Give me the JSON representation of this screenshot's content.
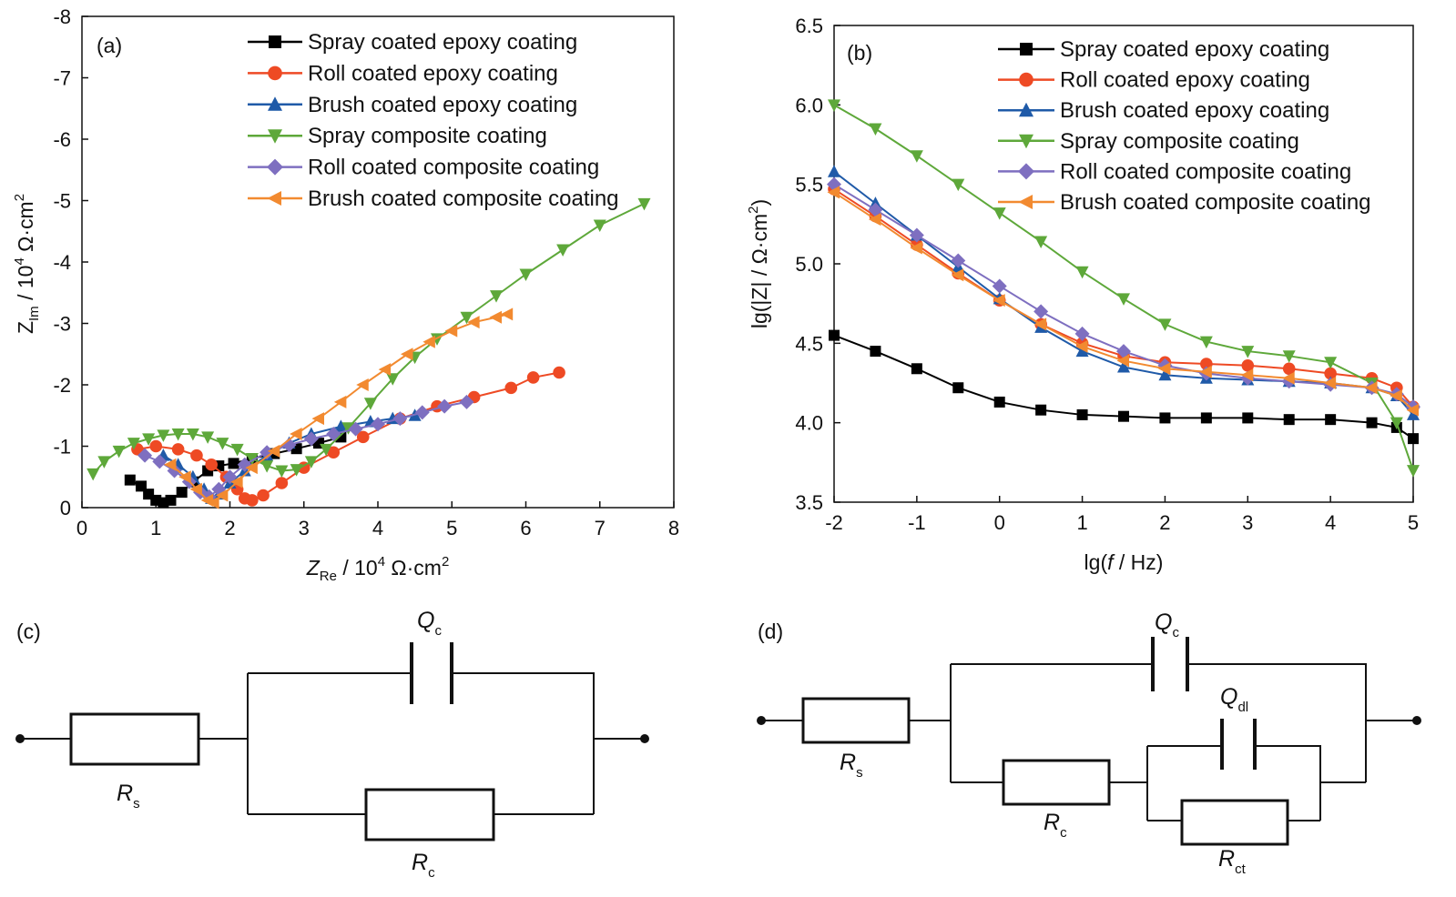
{
  "colors": {
    "spray_epoxy": "#000000",
    "roll_epoxy": "#ee4a24",
    "brush_epoxy": "#1f5aa8",
    "spray_composite": "#5ea83a",
    "roll_composite": "#7e6fc0",
    "brush_composite": "#f28a30"
  },
  "chart_data": [
    {
      "panel": "(a)",
      "type": "scatter",
      "xlabel_main": "Z",
      "xlabel_sub": "Re",
      "xlabel_unit": " / 10",
      "xlabel_exp": "4",
      "xlabel_tail": " Ω·cm",
      "xlabel_tail_exp": "2",
      "ylabel_main": "Z",
      "ylabel_sub": "Im",
      "ylabel_unit": " / 10",
      "ylabel_exp": "4",
      "ylabel_tail": " Ω·cm",
      "ylabel_tail_exp": "2",
      "xlim": [
        0,
        8
      ],
      "ylim": [
        0,
        -8
      ],
      "xticks": [
        "0",
        "1",
        "2",
        "3",
        "4",
        "5",
        "6",
        "7",
        "8"
      ],
      "yticks": [
        "0",
        "-1",
        "-2",
        "-3",
        "-4",
        "-5",
        "-6",
        "-7",
        "-8"
      ],
      "legend_position": "top-right",
      "series": [
        {
          "name": "Spray coated epoxy coating",
          "marker": "square",
          "color_key": "spray_epoxy",
          "x": [
            0.65,
            0.8,
            0.9,
            1.0,
            1.1,
            1.2,
            1.35,
            1.5,
            1.7,
            1.85,
            2.05,
            2.3,
            2.6,
            2.9,
            3.2,
            3.5
          ],
          "y": [
            -0.45,
            -0.35,
            -0.22,
            -0.12,
            -0.08,
            -0.12,
            -0.25,
            -0.42,
            -0.6,
            -0.68,
            -0.72,
            -0.8,
            -0.88,
            -0.96,
            -1.05,
            -1.15
          ]
        },
        {
          "name": "Roll coated epoxy coating",
          "marker": "circle",
          "color_key": "roll_epoxy",
          "x": [
            0.75,
            1.0,
            1.3,
            1.55,
            1.75,
            1.95,
            2.1,
            2.2,
            2.3,
            2.45,
            2.7,
            3.0,
            3.4,
            3.8,
            4.3,
            4.8,
            5.3,
            5.8,
            6.1,
            6.45
          ],
          "y": [
            -0.95,
            -1.0,
            -0.95,
            -0.85,
            -0.7,
            -0.5,
            -0.3,
            -0.15,
            -0.12,
            -0.2,
            -0.4,
            -0.65,
            -0.9,
            -1.15,
            -1.45,
            -1.65,
            -1.8,
            -1.95,
            -2.12,
            -2.2
          ]
        },
        {
          "name": "Brush coated epoxy coating",
          "marker": "triangle-up",
          "color_key": "brush_epoxy",
          "x": [
            1.1,
            1.3,
            1.5,
            1.65,
            1.75,
            1.85,
            2.0,
            2.2,
            2.5,
            2.8,
            3.1,
            3.5,
            3.9,
            4.2,
            4.5
          ],
          "y": [
            -0.85,
            -0.7,
            -0.5,
            -0.3,
            -0.15,
            -0.22,
            -0.4,
            -0.6,
            -0.85,
            -1.05,
            -1.2,
            -1.32,
            -1.4,
            -1.45,
            -1.5
          ]
        },
        {
          "name": "Spray composite coating",
          "marker": "triangle-down",
          "color_key": "spray_composite",
          "x": [
            0.15,
            0.3,
            0.5,
            0.7,
            0.9,
            1.1,
            1.3,
            1.5,
            1.7,
            1.9,
            2.1,
            2.3,
            2.5,
            2.7,
            2.9,
            3.1,
            3.3,
            3.6,
            3.9,
            4.2,
            4.5,
            4.8,
            5.2,
            5.6,
            6.0,
            6.5,
            7.0,
            7.6
          ],
          "y": [
            -0.55,
            -0.75,
            -0.92,
            -1.05,
            -1.12,
            -1.18,
            -1.2,
            -1.2,
            -1.15,
            -1.05,
            -0.95,
            -0.8,
            -0.68,
            -0.6,
            -0.62,
            -0.75,
            -0.95,
            -1.3,
            -1.7,
            -2.1,
            -2.45,
            -2.75,
            -3.1,
            -3.45,
            -3.8,
            -4.2,
            -4.6,
            -4.95
          ]
        },
        {
          "name": "Roll coated composite coating",
          "marker": "diamond",
          "color_key": "roll_composite",
          "x": [
            0.85,
            1.05,
            1.25,
            1.45,
            1.6,
            1.72,
            1.85,
            2.0,
            2.2,
            2.5,
            2.8,
            3.1,
            3.4,
            3.7,
            4.0,
            4.3,
            4.6,
            4.9,
            5.2
          ],
          "y": [
            -0.85,
            -0.75,
            -0.6,
            -0.42,
            -0.25,
            -0.18,
            -0.3,
            -0.5,
            -0.7,
            -0.9,
            -1.02,
            -1.12,
            -1.2,
            -1.28,
            -1.36,
            -1.45,
            -1.55,
            -1.65,
            -1.72
          ]
        },
        {
          "name": "Brush coated composite coating",
          "marker": "triangle-left",
          "color_key": "brush_composite",
          "x": [
            1.2,
            1.4,
            1.55,
            1.7,
            1.78,
            1.9,
            2.1,
            2.3,
            2.6,
            2.9,
            3.2,
            3.5,
            3.8,
            4.1,
            4.4,
            4.7,
            5.0,
            5.3,
            5.6,
            5.75
          ],
          "y": [
            -0.7,
            -0.5,
            -0.3,
            -0.12,
            -0.08,
            -0.2,
            -0.42,
            -0.65,
            -0.92,
            -1.2,
            -1.45,
            -1.72,
            -2.0,
            -2.25,
            -2.5,
            -2.7,
            -2.88,
            -3.02,
            -3.1,
            -3.15
          ]
        }
      ]
    },
    {
      "panel": "(b)",
      "type": "scatter",
      "xlabel_pre": "lg(",
      "xlabel_var": "f",
      "xlabel_post": " / Hz)",
      "ylabel": "lg(|Z| / Ω·cm",
      "ylabel_exp": "2",
      "ylabel_post": ")",
      "xlim": [
        -2,
        5
      ],
      "ylim": [
        3.5,
        6.5
      ],
      "xticks": [
        "-2",
        "-1",
        "0",
        "1",
        "2",
        "3",
        "4",
        "5"
      ],
      "yticks": [
        "3.5",
        "4.0",
        "4.5",
        "5.0",
        "5.5",
        "6.0",
        "6.5"
      ],
      "legend_position": "top-right",
      "series": [
        {
          "name": "Spray coated epoxy coating",
          "marker": "square",
          "color_key": "spray_epoxy",
          "x": [
            -2,
            -1.5,
            -1,
            -0.5,
            0,
            0.5,
            1,
            1.5,
            2,
            2.5,
            3,
            3.5,
            4,
            4.5,
            4.8,
            5
          ],
          "y": [
            4.55,
            4.45,
            4.34,
            4.22,
            4.13,
            4.08,
            4.05,
            4.04,
            4.03,
            4.03,
            4.03,
            4.02,
            4.02,
            4.0,
            3.97,
            3.9
          ]
        },
        {
          "name": "Roll coated epoxy coating",
          "marker": "circle",
          "color_key": "roll_epoxy",
          "x": [
            -2,
            -1.5,
            -1,
            -0.5,
            0,
            0.5,
            1,
            1.5,
            2,
            2.5,
            3,
            3.5,
            4,
            4.5,
            4.8,
            5
          ],
          "y": [
            5.47,
            5.3,
            5.12,
            4.94,
            4.77,
            4.62,
            4.5,
            4.42,
            4.38,
            4.37,
            4.36,
            4.34,
            4.31,
            4.28,
            4.22,
            4.1
          ]
        },
        {
          "name": "Brush coated epoxy coating",
          "marker": "triangle-up",
          "color_key": "brush_epoxy",
          "x": [
            -2,
            -1.5,
            -1,
            -0.5,
            0,
            0.5,
            1,
            1.5,
            2,
            2.5,
            3,
            3.5,
            4,
            4.5,
            4.8,
            5
          ],
          "y": [
            5.58,
            5.38,
            5.18,
            4.98,
            4.78,
            4.6,
            4.45,
            4.35,
            4.3,
            4.28,
            4.27,
            4.26,
            4.25,
            4.22,
            4.17,
            4.05
          ]
        },
        {
          "name": "Spray composite coating",
          "marker": "triangle-down",
          "color_key": "spray_composite",
          "x": [
            -2,
            -1.5,
            -1,
            -0.5,
            0,
            0.5,
            1,
            1.5,
            2,
            2.5,
            3,
            3.5,
            4,
            4.5,
            4.8,
            5
          ],
          "y": [
            6.0,
            5.85,
            5.68,
            5.5,
            5.32,
            5.14,
            4.95,
            4.78,
            4.62,
            4.51,
            4.45,
            4.42,
            4.38,
            4.25,
            4.0,
            3.7
          ]
        },
        {
          "name": "Roll coated composite coating",
          "marker": "diamond",
          "color_key": "roll_composite",
          "x": [
            -2,
            -1.5,
            -1,
            -0.5,
            0,
            0.5,
            1,
            1.5,
            2,
            2.5,
            3,
            3.5,
            4,
            4.5,
            4.8,
            5
          ],
          "y": [
            5.5,
            5.34,
            5.18,
            5.02,
            4.86,
            4.7,
            4.56,
            4.45,
            4.36,
            4.31,
            4.28,
            4.26,
            4.24,
            4.22,
            4.18,
            4.1
          ]
        },
        {
          "name": "Brush coated composite coating",
          "marker": "triangle-left",
          "color_key": "brush_composite",
          "x": [
            -2,
            -1.5,
            -1,
            -0.5,
            0,
            0.5,
            1,
            1.5,
            2,
            2.5,
            3,
            3.5,
            4,
            4.5,
            4.8,
            5
          ],
          "y": [
            5.45,
            5.28,
            5.1,
            4.93,
            4.77,
            4.62,
            4.48,
            4.39,
            4.34,
            4.32,
            4.3,
            4.28,
            4.25,
            4.22,
            4.17,
            4.08
          ]
        }
      ]
    }
  ],
  "circuit_c": {
    "panel": "(c)",
    "rs_main": "R",
    "rs_sub": "s",
    "qc_main": "Q",
    "qc_sub": "c",
    "rc_main": "R",
    "rc_sub": "c"
  },
  "circuit_d": {
    "panel": "(d)",
    "rs_main": "R",
    "rs_sub": "s",
    "qc_main": "Q",
    "qc_sub": "c",
    "qdl_main": "Q",
    "qdl_sub": "dl",
    "rc_main": "R",
    "rc_sub": "c",
    "rct_main": "R",
    "rct_sub": "ct"
  }
}
